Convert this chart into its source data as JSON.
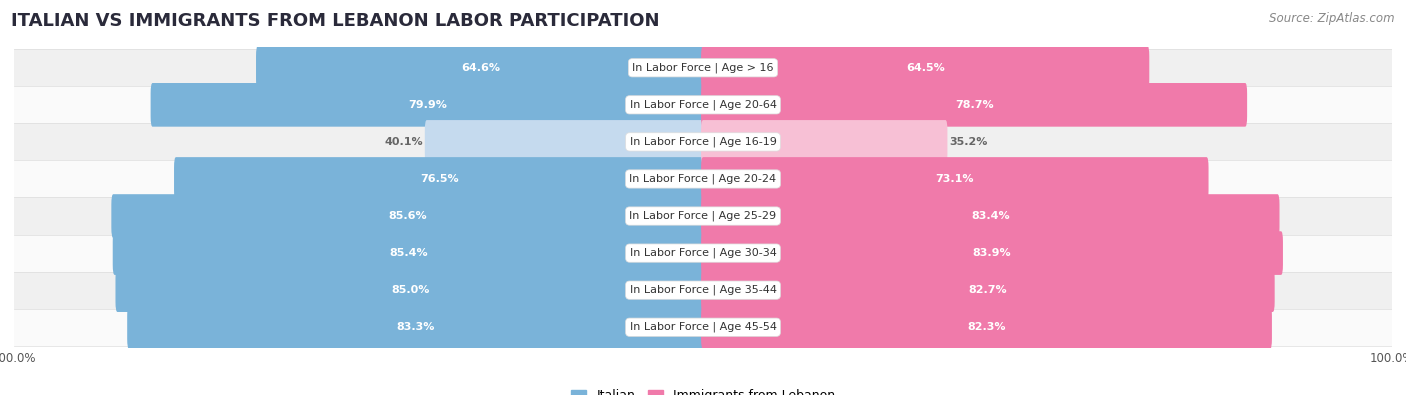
{
  "title": "ITALIAN VS IMMIGRANTS FROM LEBANON LABOR PARTICIPATION",
  "source": "Source: ZipAtlas.com",
  "categories": [
    "In Labor Force | Age > 16",
    "In Labor Force | Age 20-64",
    "In Labor Force | Age 16-19",
    "In Labor Force | Age 20-24",
    "In Labor Force | Age 25-29",
    "In Labor Force | Age 30-34",
    "In Labor Force | Age 35-44",
    "In Labor Force | Age 45-54"
  ],
  "italian_values": [
    64.6,
    79.9,
    40.1,
    76.5,
    85.6,
    85.4,
    85.0,
    83.3
  ],
  "lebanon_values": [
    64.5,
    78.7,
    35.2,
    73.1,
    83.4,
    83.9,
    82.7,
    82.3
  ],
  "italian_color": "#7ab3d9",
  "italian_color_light": "#c5daee",
  "lebanon_color": "#f07aaa",
  "lebanon_color_light": "#f7c0d5",
  "row_bg_even": "#f0f0f0",
  "row_bg_odd": "#fafafa",
  "title_color": "#2a2a3a",
  "source_color": "#888888",
  "label_white": "#ffffff",
  "label_dark": "#666666",
  "label_center_color": "#333333",
  "max_value": 100.0,
  "figsize": [
    14.06,
    3.95
  ],
  "dpi": 100,
  "title_fontsize": 13,
  "bar_label_fontsize": 8,
  "cat_label_fontsize": 8,
  "legend_fontsize": 9
}
